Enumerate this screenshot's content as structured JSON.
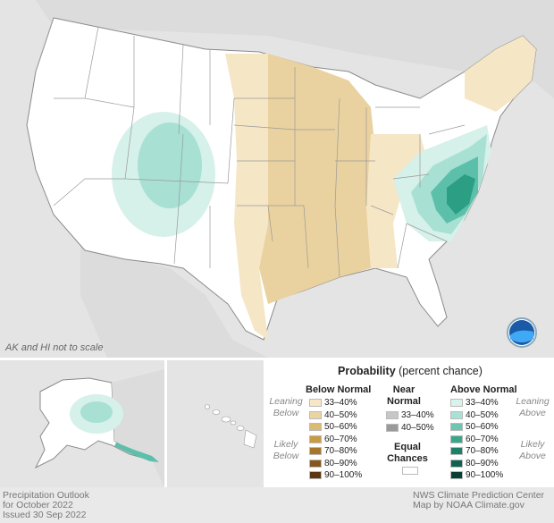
{
  "map": {
    "note": "AK and HI not to scale",
    "logo": "noaa-logo",
    "colors": {
      "land": "#ffffff",
      "background": "#e4e4e4",
      "border": "#999999",
      "below_33_40": "#f5e6c6",
      "below_40_50": "#e9d29f",
      "above_33_40": "#d6f0ea",
      "above_40_50": "#a8e0d4",
      "above_50_60": "#5cbfa9",
      "above_60_70": "#2b9e84"
    }
  },
  "legend": {
    "title": "Probability",
    "title_sub": "(percent chance)",
    "below": {
      "heading": "Below Normal",
      "leaning": "Leaning Below",
      "likely": "Likely Below",
      "items": [
        {
          "label": "33–40%",
          "color": "#f7e7c7"
        },
        {
          "label": "40–50%",
          "color": "#ead4a4"
        },
        {
          "label": "50–60%",
          "color": "#dbba74"
        },
        {
          "label": "60–70%",
          "color": "#c99a45"
        },
        {
          "label": "70–80%",
          "color": "#a8752a"
        },
        {
          "label": "80–90%",
          "color": "#86561c"
        },
        {
          "label": "90–100%",
          "color": "#5b3610"
        }
      ]
    },
    "near": {
      "heading_1": "Near",
      "heading_2": "Normal",
      "items": [
        {
          "label": "33–40%",
          "color": "#c7c7c7"
        },
        {
          "label": "40–50%",
          "color": "#9a9a9a"
        }
      ]
    },
    "equal": {
      "heading_1": "Equal",
      "heading_2": "Chances",
      "color": "#ffffff"
    },
    "above": {
      "heading": "Above Normal",
      "leaning": "Leaning Above",
      "likely": "Likely Above",
      "items": [
        {
          "label": "33–40%",
          "color": "#d8f2ec"
        },
        {
          "label": "40–50%",
          "color": "#a9e1d5"
        },
        {
          "label": "50–60%",
          "color": "#6cc6b2"
        },
        {
          "label": "60–70%",
          "color": "#3aa68c"
        },
        {
          "label": "70–80%",
          "color": "#1f8069"
        },
        {
          "label": "80–90%",
          "color": "#126150"
        },
        {
          "label": "90–100%",
          "color": "#073f33"
        }
      ]
    }
  },
  "footer": {
    "left_1": "Precipitation Outlook",
    "left_2": "for October 2022",
    "left_3": "Issued 30 Sep 2022",
    "right_1": "NWS Climate Prediction Center",
    "right_2": "Map by NOAA Climate.gov"
  }
}
